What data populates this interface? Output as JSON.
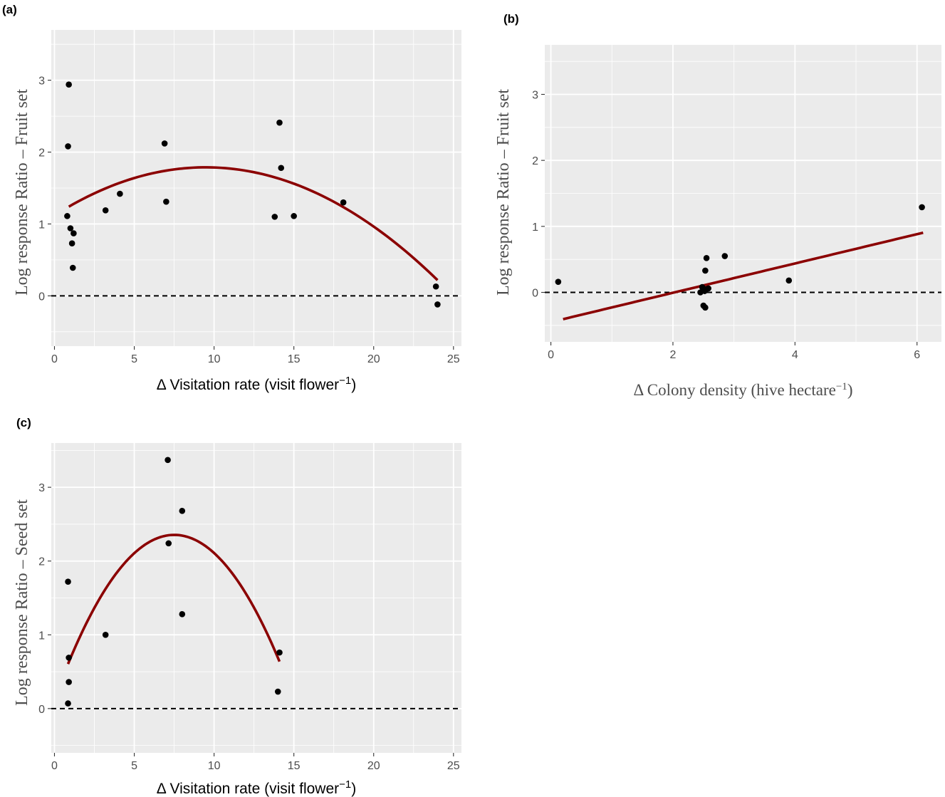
{
  "chart_data": [
    {
      "panel": "(a)",
      "type": "scatter",
      "xlabel": "Δ Visitation rate (visit flower",
      "xlabel_sup": "−1",
      "xlabel_end": ")",
      "ylabel": "Log response Ratio – Fruit set",
      "xlim": [
        -0.2,
        25.5
      ],
      "ylim": [
        -0.7,
        3.7
      ],
      "xticks": [
        0,
        5,
        10,
        15,
        20,
        25
      ],
      "yticks": [
        0,
        1,
        2,
        3
      ],
      "grid": true,
      "reference_line_y": 0,
      "fit": "quadratic",
      "fit_color": "#8b0000",
      "fit_x": [
        0.9,
        24.0
      ],
      "fit_coeffs": [
        1.12,
        0.141,
        -0.00744
      ],
      "points": [
        {
          "x": 0.9,
          "y": 2.94
        },
        {
          "x": 0.85,
          "y": 2.08
        },
        {
          "x": 0.8,
          "y": 1.11
        },
        {
          "x": 1.0,
          "y": 0.94
        },
        {
          "x": 1.2,
          "y": 0.87
        },
        {
          "x": 1.1,
          "y": 0.73
        },
        {
          "x": 1.15,
          "y": 0.39
        },
        {
          "x": 3.2,
          "y": 1.19
        },
        {
          "x": 4.1,
          "y": 1.42
        },
        {
          "x": 6.9,
          "y": 2.12
        },
        {
          "x": 7.0,
          "y": 1.31
        },
        {
          "x": 13.8,
          "y": 1.1
        },
        {
          "x": 14.1,
          "y": 2.41
        },
        {
          "x": 14.2,
          "y": 1.78
        },
        {
          "x": 15.0,
          "y": 1.11
        },
        {
          "x": 18.1,
          "y": 1.3
        },
        {
          "x": 23.9,
          "y": 0.13
        },
        {
          "x": 24.0,
          "y": -0.12
        }
      ]
    },
    {
      "panel": "(b)",
      "type": "scatter",
      "xlabel": "Δ Colony density (hive hectare",
      "xlabel_sup": "−1",
      "xlabel_end": ")",
      "ylabel": "Log response Ratio – Fruit set",
      "xlim": [
        -0.1,
        6.4
      ],
      "ylim": [
        -0.75,
        3.75
      ],
      "xticks": [
        0,
        2,
        4,
        6
      ],
      "yticks": [
        0,
        1,
        2,
        3
      ],
      "grid": true,
      "reference_line_y": 0,
      "fit": "linear",
      "fit_color": "#8b0000",
      "fit_x": [
        0.2,
        6.1
      ],
      "fit_coeffs": [
        -0.45,
        0.222
      ],
      "points": [
        {
          "x": 0.12,
          "y": 0.16
        },
        {
          "x": 2.45,
          "y": 0.0
        },
        {
          "x": 2.48,
          "y": 0.08
        },
        {
          "x": 2.5,
          "y": -0.2
        },
        {
          "x": 2.52,
          "y": 0.02
        },
        {
          "x": 2.53,
          "y": -0.23
        },
        {
          "x": 2.55,
          "y": 0.05
        },
        {
          "x": 2.53,
          "y": 0.33
        },
        {
          "x": 2.55,
          "y": 0.52
        },
        {
          "x": 2.58,
          "y": 0.06
        },
        {
          "x": 2.85,
          "y": 0.55
        },
        {
          "x": 3.9,
          "y": 0.18
        },
        {
          "x": 6.08,
          "y": 1.29
        }
      ]
    },
    {
      "panel": "(c)",
      "type": "scatter",
      "xlabel": "Δ Visitation rate (visit flower",
      "xlabel_sup": "−1",
      "xlabel_end": ")",
      "ylabel": "Log response Ratio – Seed set",
      "xlim": [
        -0.2,
        25.5
      ],
      "ylim": [
        -0.6,
        3.6
      ],
      "xticks": [
        0,
        5,
        10,
        15,
        20,
        25
      ],
      "yticks": [
        0,
        1,
        2,
        3
      ],
      "grid": true,
      "reference_line_y": 0,
      "fit": "quadratic",
      "fit_color": "#8b0000",
      "fit_x": [
        0.85,
        14.1
      ],
      "fit_coeffs": [
        0.129,
        0.593,
        -0.0395
      ],
      "points": [
        {
          "x": 0.85,
          "y": 1.72
        },
        {
          "x": 0.9,
          "y": 0.69
        },
        {
          "x": 0.9,
          "y": 0.36
        },
        {
          "x": 0.85,
          "y": 0.07
        },
        {
          "x": 3.2,
          "y": 1.0
        },
        {
          "x": 7.1,
          "y": 3.37
        },
        {
          "x": 7.15,
          "y": 2.24
        },
        {
          "x": 8.0,
          "y": 2.68
        },
        {
          "x": 8.0,
          "y": 1.28
        },
        {
          "x": 14.1,
          "y": 0.76
        },
        {
          "x": 14.0,
          "y": 0.23
        }
      ]
    }
  ]
}
